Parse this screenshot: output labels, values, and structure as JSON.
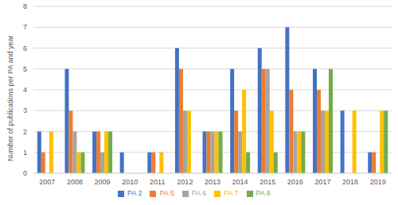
{
  "chart_data": {
    "type": "bar",
    "y_label": "Number of publications per PA and  year",
    "categories": [
      "2007",
      "2008",
      "2009",
      "2010",
      "2011",
      "2012",
      "2013",
      "2014",
      "2015",
      "2016",
      "2017",
      "2018",
      "2019"
    ],
    "series": [
      {
        "name": "PA 2",
        "color": "#4472c4",
        "values": [
          2,
          5,
          2,
          1,
          1,
          6,
          2,
          5,
          6,
          7,
          5,
          3,
          1
        ]
      },
      {
        "name": "PA 5",
        "color": "#ed7d31",
        "values": [
          1,
          3,
          2,
          0,
          1,
          5,
          2,
          3,
          5,
          4,
          4,
          0,
          1
        ]
      },
      {
        "name": "PA 6",
        "color": "#a5a5a5",
        "values": [
          0,
          2,
          1,
          0,
          0,
          3,
          2,
          2,
          5,
          2,
          3,
          0,
          0
        ]
      },
      {
        "name": "PA 7",
        "color": "#ffc000",
        "values": [
          2,
          1,
          2,
          0,
          1,
          3,
          2,
          4,
          3,
          2,
          3,
          3,
          3
        ]
      },
      {
        "name": "PA 8",
        "color": "#70ad47",
        "values": [
          0,
          1,
          2,
          0,
          0,
          0,
          2,
          1,
          1,
          2,
          5,
          0,
          3
        ]
      }
    ],
    "ylim": [
      0,
      8
    ],
    "yticks": [
      0,
      1,
      2,
      3,
      4,
      5,
      6,
      7,
      8
    ],
    "grid": true,
    "legend": "bottom"
  }
}
